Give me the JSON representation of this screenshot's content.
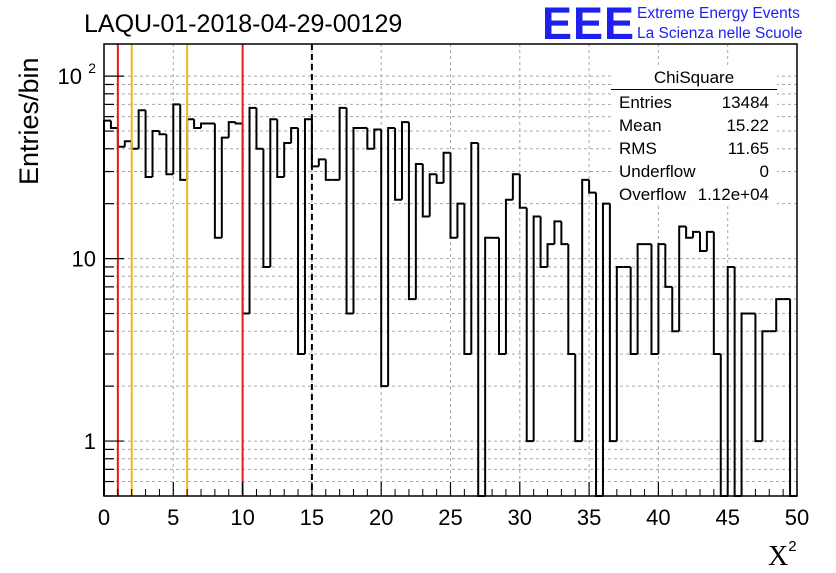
{
  "page": {
    "title": "LAQU-01-2018-04-29-00129"
  },
  "branding": {
    "logo": "EEE",
    "line1": "Extreme Energy Events",
    "line2": "La Scienza nelle Scuole"
  },
  "stats": {
    "title": "ChiSquare",
    "rows": [
      {
        "key": "Entries",
        "value": "13484"
      },
      {
        "key": "Mean",
        "value": "15.22"
      },
      {
        "key": "RMS",
        "value": "11.65"
      },
      {
        "key": "Underflow",
        "value": "0"
      },
      {
        "key": "Overflow",
        "value": "1.12e+04"
      }
    ]
  },
  "chart_data": {
    "type": "bar",
    "title": "LAQU-01-2018-04-29-00129",
    "xlabel": "X",
    "xlabel_sup": "2",
    "ylabel": "Entries/bin",
    "xlim": [
      0,
      50
    ],
    "ylim": [
      0.5,
      150
    ],
    "yscale": "log",
    "grid": true,
    "bin_width": 0.5,
    "x_ticks": [
      "0",
      "5",
      "10",
      "15",
      "20",
      "25",
      "30",
      "35",
      "40",
      "45",
      "50"
    ],
    "y_ticks": [
      {
        "base": "1",
        "exp": ""
      },
      {
        "base": "10",
        "exp": ""
      },
      {
        "base": "10",
        "exp": "2"
      }
    ],
    "vertical_lines": [
      {
        "x": 1,
        "color": "#e8191b",
        "style": "solid"
      },
      {
        "x": 2,
        "color": "#f0b71e",
        "style": "solid"
      },
      {
        "x": 6,
        "color": "#f0b71e",
        "style": "solid"
      },
      {
        "x": 10,
        "color": "#e8191b",
        "style": "solid"
      },
      {
        "x": 15,
        "color": "#000000",
        "style": "dashed"
      }
    ],
    "values": [
      57,
      52,
      41,
      44,
      40,
      65,
      28,
      50,
      48,
      29,
      70,
      27,
      58,
      52,
      55,
      55,
      13,
      46,
      56,
      55,
      5,
      67,
      40,
      9,
      58,
      28,
      43,
      52,
      3,
      58,
      32,
      35,
      27,
      27,
      67,
      5,
      52,
      52,
      40,
      51,
      2,
      52,
      21,
      56,
      6,
      33,
      17,
      29,
      26,
      38,
      13,
      20,
      3,
      43,
      0,
      13,
      13,
      3,
      21,
      29,
      19,
      1,
      17,
      9,
      12,
      16,
      12,
      3,
      1,
      27,
      23,
      0,
      20,
      1,
      9,
      9,
      3,
      12,
      12,
      3,
      12,
      7,
      4,
      15,
      13,
      14,
      11,
      14,
      3,
      0,
      9,
      0,
      5,
      5,
      1,
      4,
      4,
      6,
      6,
      0
    ]
  }
}
